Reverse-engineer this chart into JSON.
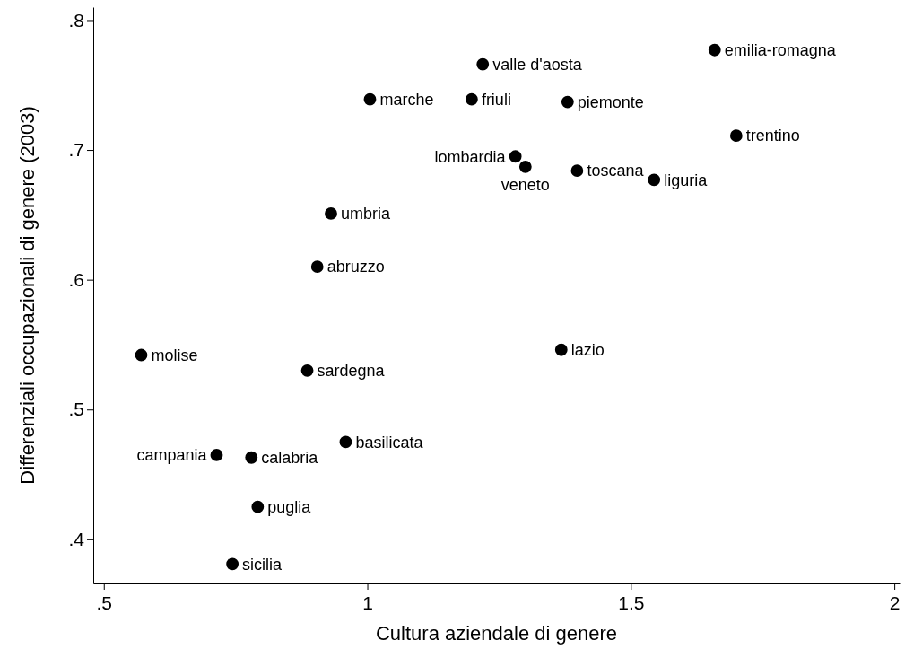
{
  "chart_data": {
    "type": "scatter",
    "xlabel": "Cultura aziendale di genere",
    "ylabel": "Differenziali occupazionali di genere (2003)",
    "xlim": [
      0.48,
      2.01
    ],
    "ylim": [
      0.366,
      0.81
    ],
    "xticks": [
      {
        "value": 0.5,
        "label": ".5"
      },
      1,
      {
        "value": 1.5,
        "label": "1.5"
      },
      2
    ],
    "yticks": [
      {
        "value": 0.4,
        "label": ".4"
      },
      {
        "value": 0.5,
        "label": ".5"
      },
      {
        "value": 0.6,
        "label": ".6"
      },
      {
        "value": 0.7,
        "label": ".7"
      },
      {
        "value": 0.8,
        "label": ".8"
      }
    ],
    "grid": false,
    "marker": "circle",
    "series": [
      {
        "color": "#000000",
        "x": [
          1.659,
          1.219,
          1.005,
          1.198,
          1.38,
          1.7,
          1.281,
          1.3,
          1.398,
          1.544,
          0.931,
          0.905,
          0.571,
          0.886,
          1.368,
          0.959,
          0.714,
          0.78,
          0.792,
          0.744
        ],
        "values": [
          0.777,
          0.766,
          0.739,
          0.739,
          0.737,
          0.711,
          0.695,
          0.687,
          0.684,
          0.677,
          0.651,
          0.61,
          0.542,
          0.53,
          0.546,
          0.475,
          0.465,
          0.463,
          0.425,
          0.381
        ]
      }
    ],
    "annotations": [
      {
        "text": "emilia-romagna",
        "x": 1.659,
        "y": 0.777
      },
      {
        "text": "valle d'aosta",
        "x": 1.219,
        "y": 0.766
      },
      {
        "text": "marche",
        "x": 1.005,
        "y": 0.739
      },
      {
        "text": "friuli",
        "x": 1.198,
        "y": 0.739
      },
      {
        "text": "piemonte",
        "x": 1.38,
        "y": 0.737
      },
      {
        "text": "trentino",
        "x": 1.7,
        "y": 0.711
      },
      {
        "text": "lombardia",
        "x": 1.281,
        "y": 0.695
      },
      {
        "text": "veneto",
        "x": 1.3,
        "y": 0.687
      },
      {
        "text": "toscana",
        "x": 1.398,
        "y": 0.684
      },
      {
        "text": "liguria",
        "x": 1.544,
        "y": 0.677
      },
      {
        "text": "umbria",
        "x": 0.931,
        "y": 0.651
      },
      {
        "text": "abruzzo",
        "x": 0.905,
        "y": 0.61
      },
      {
        "text": "molise",
        "x": 0.571,
        "y": 0.542
      },
      {
        "text": "sardegna",
        "x": 0.886,
        "y": 0.53
      },
      {
        "text": "lazio",
        "x": 1.368,
        "y": 0.546
      },
      {
        "text": "basilicata",
        "x": 0.959,
        "y": 0.475
      },
      {
        "text": "campania",
        "x": 0.714,
        "y": 0.465
      },
      {
        "text": "calabria",
        "x": 0.78,
        "y": 0.463
      },
      {
        "text": "puglia",
        "x": 0.792,
        "y": 0.425
      },
      {
        "text": "sicilia",
        "x": 0.744,
        "y": 0.381
      }
    ]
  }
}
